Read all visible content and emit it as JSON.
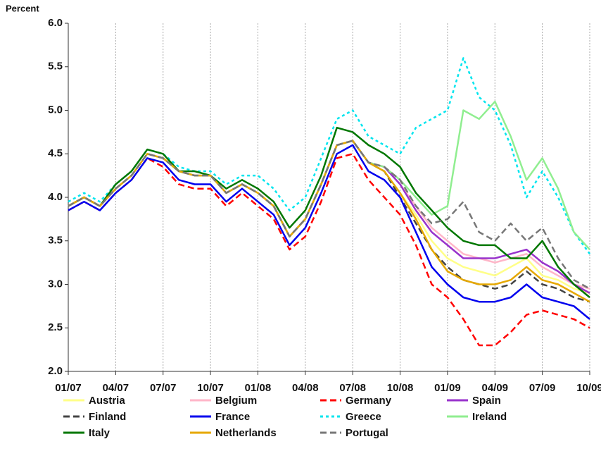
{
  "chart_data": {
    "type": "line",
    "y_label": "Percent",
    "categories": [
      "01/07",
      null,
      null,
      "04/07",
      null,
      null,
      "07/07",
      null,
      null,
      "10/07",
      null,
      null,
      "01/08",
      null,
      null,
      "04/08",
      null,
      null,
      "07/08",
      null,
      null,
      "10/08",
      null,
      null,
      "01/09",
      null,
      null,
      "04/09",
      null,
      null,
      "07/09",
      null,
      null,
      "10/09"
    ],
    "ylim": [
      2,
      6
    ],
    "yticks": [
      {
        "value": 2,
        "label": "2.0"
      },
      {
        "value": 2.5,
        "label": "2.5"
      },
      {
        "value": 3,
        "label": "3.0"
      },
      {
        "value": 3.5,
        "label": "3.5"
      },
      {
        "value": 4,
        "label": "4.0"
      },
      {
        "value": 4.5,
        "label": "4.5"
      },
      {
        "value": 5,
        "label": "5.0"
      },
      {
        "value": 5.5,
        "label": "5.5"
      },
      {
        "value": 6,
        "label": "6.0"
      }
    ],
    "grid": "x",
    "series": [
      {
        "name": "Austria",
        "color": "#ffff88",
        "style": "solid",
        "values": [
          3.9,
          4.0,
          3.9,
          4.1,
          4.25,
          4.5,
          4.45,
          4.3,
          4.25,
          4.25,
          4.05,
          4.15,
          4.05,
          3.9,
          3.55,
          3.75,
          4.15,
          4.6,
          4.65,
          4.4,
          4.3,
          4.05,
          3.8,
          3.5,
          3.3,
          3.2,
          3.15,
          3.1,
          3.2,
          3.3,
          3.1,
          3.05,
          2.95,
          2.9
        ]
      },
      {
        "name": "Belgium",
        "color": "#ffb6c8",
        "style": "solid",
        "values": [
          3.9,
          4.0,
          3.9,
          4.1,
          4.25,
          4.5,
          4.45,
          4.3,
          4.25,
          4.25,
          4.05,
          4.15,
          4.05,
          3.9,
          3.55,
          3.75,
          4.15,
          4.6,
          4.65,
          4.4,
          4.35,
          4.15,
          3.9,
          3.65,
          3.5,
          3.35,
          3.3,
          3.25,
          3.3,
          3.35,
          3.2,
          3.1,
          3.0,
          2.95
        ]
      },
      {
        "name": "Germany",
        "color": "#ff0000",
        "style": "dashed",
        "values": [
          3.85,
          3.95,
          3.85,
          4.05,
          4.2,
          4.45,
          4.35,
          4.15,
          4.1,
          4.1,
          3.9,
          4.05,
          3.9,
          3.75,
          3.4,
          3.55,
          3.95,
          4.45,
          4.5,
          4.2,
          4.0,
          3.8,
          3.45,
          3.0,
          2.85,
          2.6,
          2.3,
          2.3,
          2.45,
          2.65,
          2.7,
          2.65,
          2.6,
          2.5
        ]
      },
      {
        "name": "Spain",
        "color": "#9933cc",
        "style": "solid",
        "values": [
          3.9,
          4.0,
          3.9,
          4.1,
          4.25,
          4.5,
          4.45,
          4.3,
          4.25,
          4.25,
          4.05,
          4.15,
          4.05,
          3.9,
          3.55,
          3.75,
          4.15,
          4.6,
          4.65,
          4.4,
          4.35,
          4.15,
          3.85,
          3.6,
          3.45,
          3.3,
          3.3,
          3.3,
          3.35,
          3.4,
          3.25,
          3.15,
          3.0,
          2.9
        ]
      },
      {
        "name": "Finland",
        "color": "#444444",
        "style": "dashed",
        "values": [
          3.9,
          4.0,
          3.9,
          4.1,
          4.25,
          4.5,
          4.45,
          4.3,
          4.25,
          4.25,
          4.05,
          4.15,
          4.05,
          3.9,
          3.55,
          3.75,
          4.15,
          4.6,
          4.65,
          4.4,
          4.3,
          4.0,
          3.7,
          3.4,
          3.2,
          3.05,
          3.0,
          2.95,
          3.0,
          3.15,
          3.0,
          2.95,
          2.85,
          2.8
        ]
      },
      {
        "name": "France",
        "color": "#0000ee",
        "style": "solid",
        "values": [
          3.85,
          3.95,
          3.85,
          4.05,
          4.2,
          4.45,
          4.4,
          4.2,
          4.15,
          4.15,
          3.95,
          4.1,
          3.95,
          3.8,
          3.45,
          3.65,
          4.05,
          4.5,
          4.6,
          4.3,
          4.2,
          4.0,
          3.6,
          3.2,
          3.0,
          2.85,
          2.8,
          2.8,
          2.85,
          3.0,
          2.85,
          2.8,
          2.75,
          2.6
        ]
      },
      {
        "name": "Greece",
        "color": "#00e5ee",
        "style": "dotted",
        "values": [
          3.95,
          4.05,
          3.95,
          4.15,
          4.3,
          4.55,
          4.5,
          4.35,
          4.3,
          4.3,
          4.15,
          4.25,
          4.25,
          4.1,
          3.85,
          4.0,
          4.45,
          4.9,
          5.0,
          4.7,
          4.6,
          4.5,
          4.8,
          4.9,
          5.0,
          5.6,
          5.15,
          5.0,
          4.6,
          4.0,
          4.3,
          4.0,
          3.6,
          3.35
        ]
      },
      {
        "name": "Ireland",
        "color": "#90ee90",
        "style": "solid",
        "values": [
          3.9,
          4.0,
          3.9,
          4.1,
          4.25,
          4.5,
          4.45,
          4.3,
          4.25,
          4.25,
          4.05,
          4.15,
          4.05,
          3.9,
          3.55,
          3.75,
          4.15,
          4.6,
          4.65,
          4.4,
          4.35,
          4.2,
          4.0,
          3.8,
          3.9,
          5.0,
          4.9,
          5.1,
          4.7,
          4.2,
          4.45,
          4.1,
          3.6,
          3.4
        ]
      },
      {
        "name": "Italy",
        "color": "#007700",
        "style": "solid",
        "values": [
          3.9,
          4.0,
          3.9,
          4.15,
          4.3,
          4.55,
          4.5,
          4.3,
          4.3,
          4.25,
          4.1,
          4.2,
          4.1,
          3.95,
          3.65,
          3.85,
          4.25,
          4.8,
          4.75,
          4.6,
          4.5,
          4.35,
          4.05,
          3.85,
          3.65,
          3.5,
          3.45,
          3.45,
          3.3,
          3.3,
          3.5,
          3.2,
          3.0,
          2.85
        ]
      },
      {
        "name": "Netherlands",
        "color": "#e6a800",
        "style": "solid",
        "values": [
          3.9,
          4.0,
          3.9,
          4.1,
          4.25,
          4.5,
          4.45,
          4.3,
          4.25,
          4.25,
          4.05,
          4.15,
          4.05,
          3.9,
          3.55,
          3.75,
          4.15,
          4.6,
          4.65,
          4.4,
          4.3,
          4.05,
          3.75,
          3.4,
          3.15,
          3.05,
          3.0,
          3.0,
          3.05,
          3.2,
          3.05,
          3.0,
          2.9,
          2.8
        ]
      },
      {
        "name": "Portugal",
        "color": "#777777",
        "style": "dashed",
        "values": [
          3.9,
          4.0,
          3.9,
          4.1,
          4.25,
          4.5,
          4.45,
          4.3,
          4.25,
          4.25,
          4.05,
          4.15,
          4.05,
          3.9,
          3.55,
          3.75,
          4.15,
          4.6,
          4.65,
          4.4,
          4.35,
          4.2,
          3.9,
          3.7,
          3.75,
          3.95,
          3.6,
          3.5,
          3.7,
          3.5,
          3.65,
          3.3,
          3.05,
          2.95
        ]
      }
    ]
  }
}
